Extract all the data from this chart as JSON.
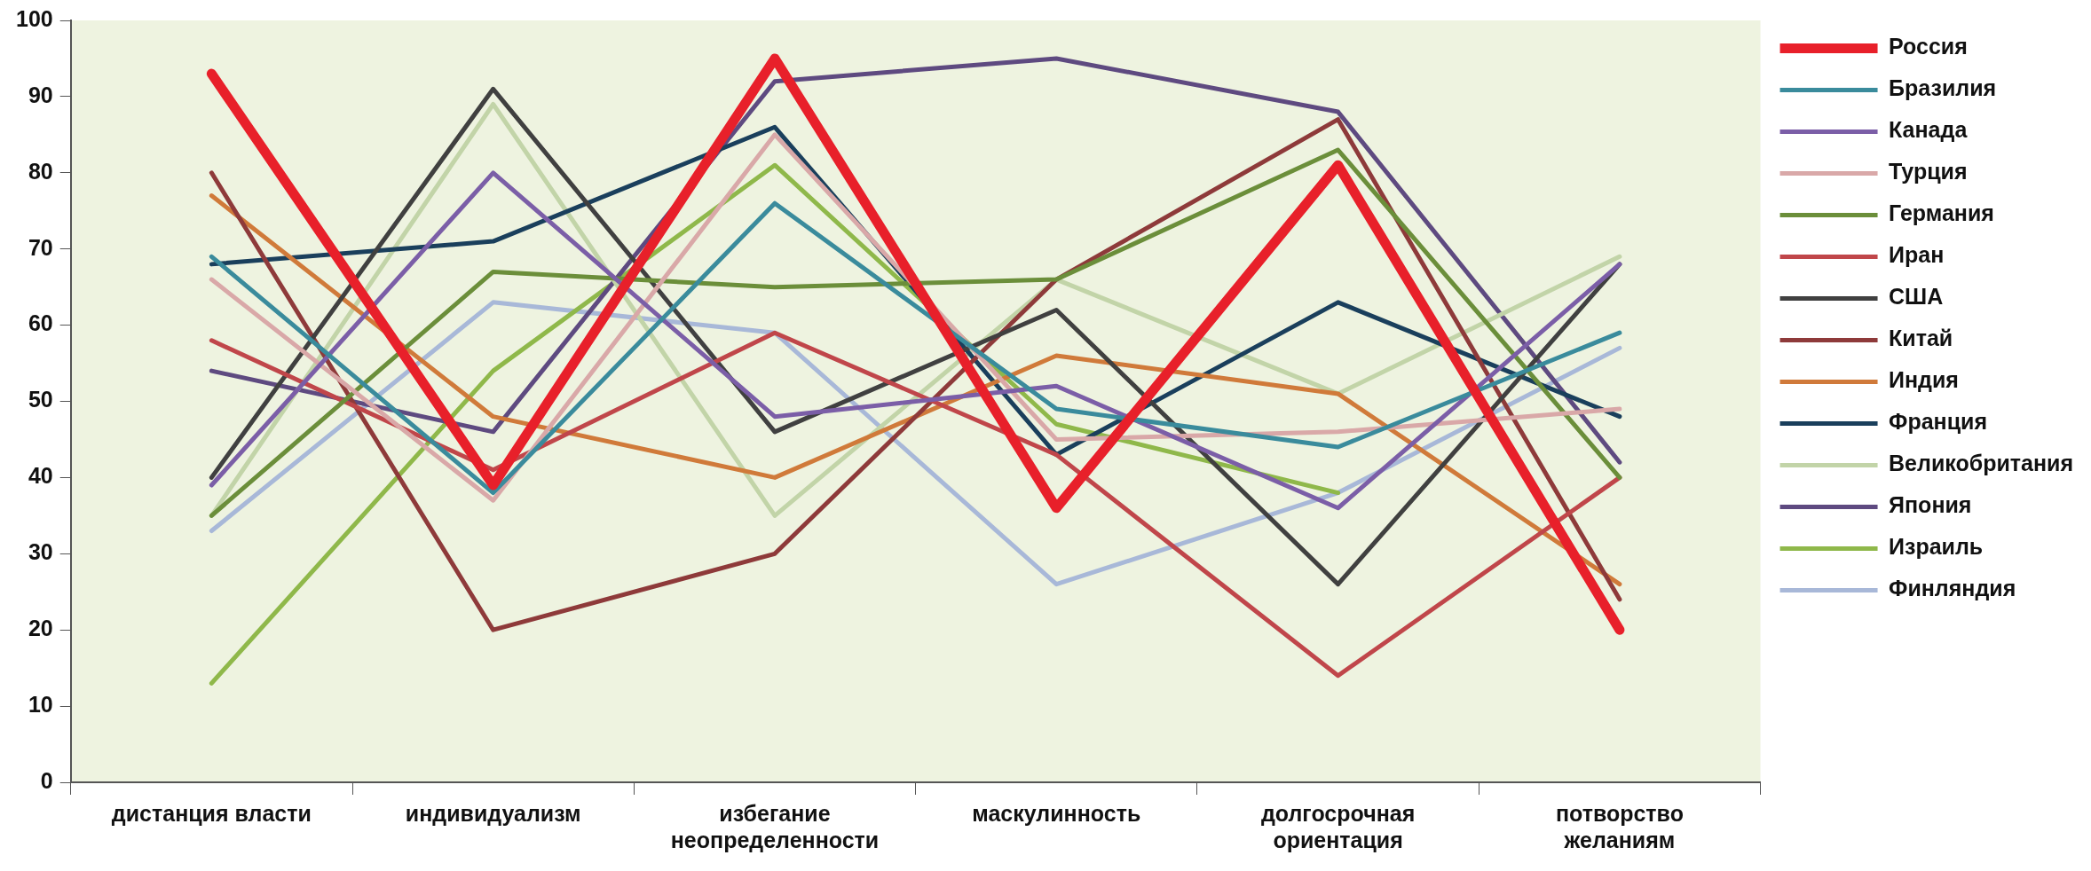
{
  "chart_data": {
    "type": "line",
    "categories": [
      "дистанция власти",
      "индивидуализм",
      "избегание неопределенности",
      "маскулинность",
      "долгосрочная ориентация",
      "потворство желаниям"
    ],
    "series": [
      {
        "name": "Россия",
        "color": "#e8202a",
        "values": [
          93,
          39,
          95,
          36,
          81,
          20
        ]
      },
      {
        "name": "Бразилия",
        "color": "#3a8b9c",
        "values": [
          69,
          38,
          76,
          49,
          44,
          59
        ]
      },
      {
        "name": "Канада",
        "color": "#7b5ea7",
        "values": [
          39,
          80,
          48,
          52,
          36,
          68
        ]
      },
      {
        "name": "Турция",
        "color": "#d9a8a8",
        "values": [
          66,
          37,
          85,
          45,
          46,
          49
        ]
      },
      {
        "name": "Германия",
        "color": "#6b8e3a",
        "values": [
          35,
          67,
          65,
          66,
          83,
          40
        ]
      },
      {
        "name": "Иран",
        "color": "#c0464a",
        "values": [
          58,
          41,
          59,
          43,
          14,
          40
        ]
      },
      {
        "name": "США",
        "color": "#404040",
        "values": [
          40,
          91,
          46,
          62,
          26,
          68
        ]
      },
      {
        "name": "Китай",
        "color": "#8e3a3a",
        "values": [
          80,
          20,
          30,
          66,
          87,
          24
        ]
      },
      {
        "name": "Индия",
        "color": "#d07a3a",
        "values": [
          77,
          48,
          40,
          56,
          51,
          26
        ]
      },
      {
        "name": "Франция",
        "color": "#1a3f5c",
        "values": [
          68,
          71,
          86,
          43,
          63,
          48
        ]
      },
      {
        "name": "Великобритания",
        "color": "#c2d4a8",
        "values": [
          35,
          89,
          35,
          66,
          51,
          69
        ]
      },
      {
        "name": "Япония",
        "color": "#5e4a80",
        "values": [
          54,
          46,
          92,
          95,
          88,
          42
        ]
      },
      {
        "name": "Израиль",
        "color": "#8fb84a",
        "values": [
          13,
          54,
          81,
          47,
          38,
          null
        ]
      },
      {
        "name": "Финляндия",
        "color": "#a8b8d8",
        "values": [
          33,
          63,
          59,
          26,
          38,
          57
        ]
      }
    ],
    "ylim": [
      0,
      100
    ],
    "yticks": [
      0,
      10,
      20,
      30,
      40,
      50,
      60,
      70,
      80,
      90,
      100
    ],
    "legend": "right",
    "marker": "none",
    "line_style": "solid"
  }
}
